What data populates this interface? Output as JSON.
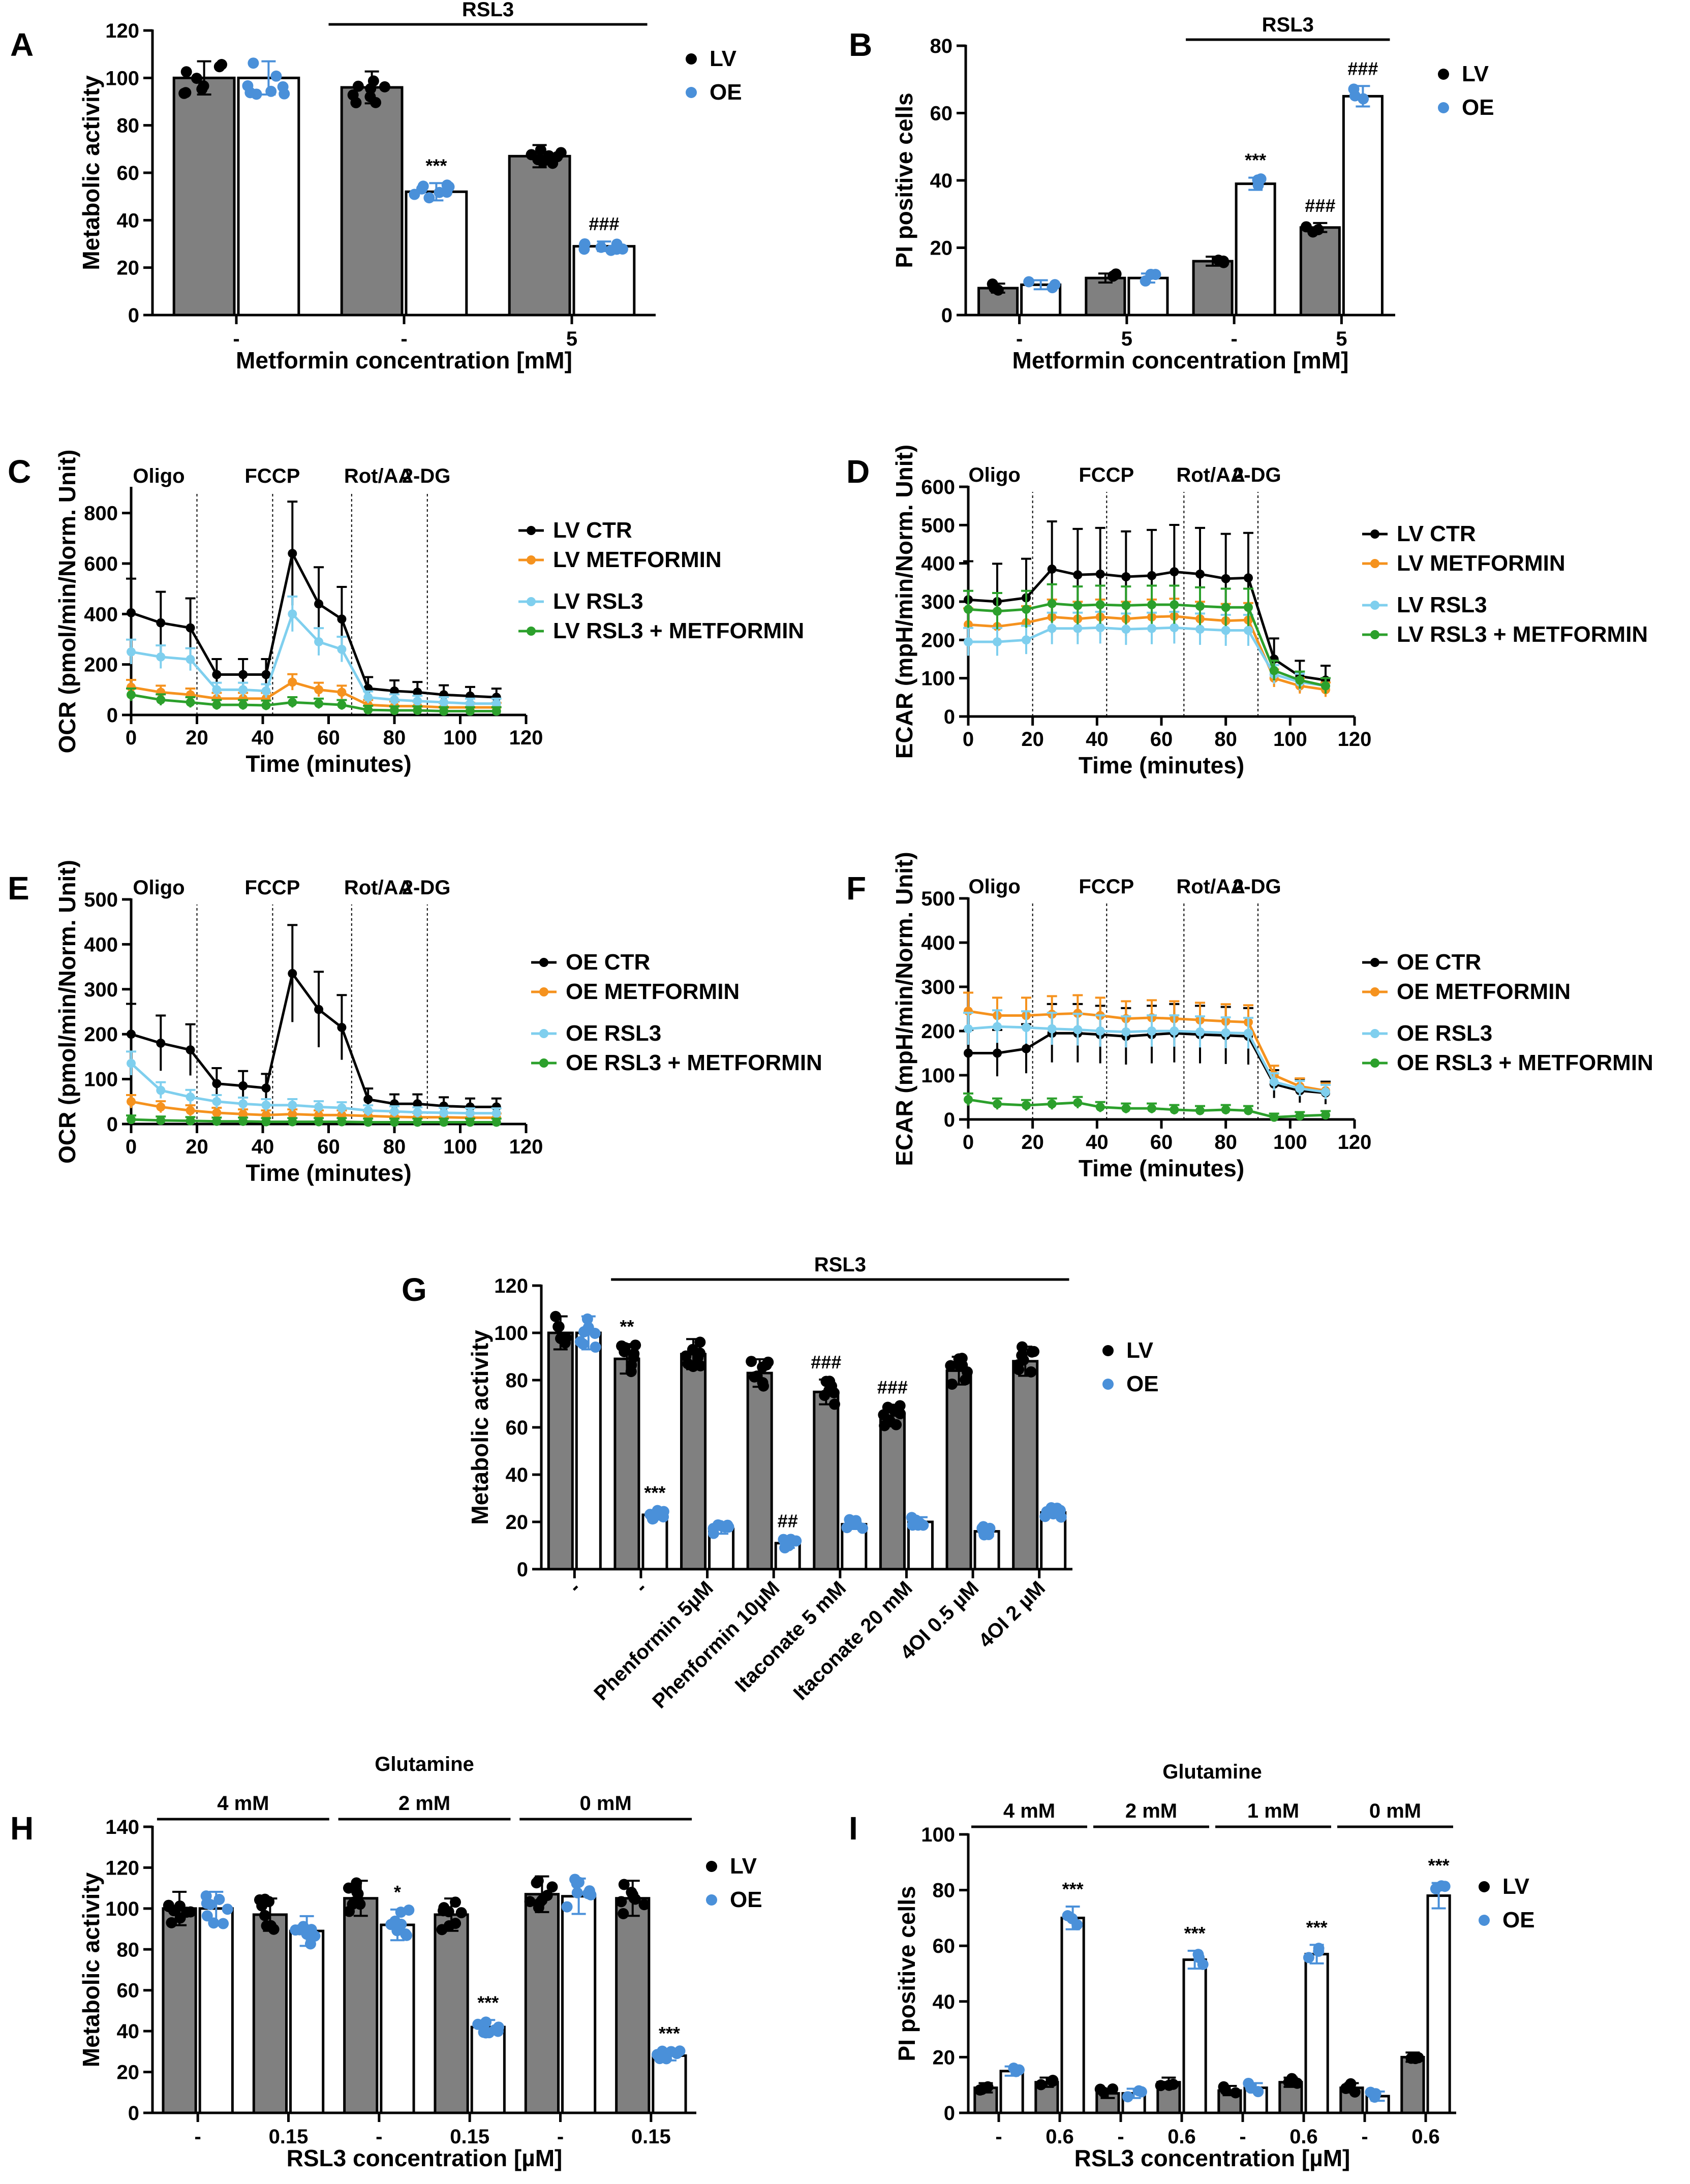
{
  "colors": {
    "lv": "#000000",
    "oe": "#4a90d9",
    "bar_lv": "#808080",
    "bar_oe": "#ffffff",
    "ctr": "#000000",
    "metformin": "#f5921e",
    "rsl3": "#7fcfee",
    "rsl3_metformin": "#2ca02c"
  },
  "chart_data": [
    {
      "id": "A",
      "type": "bar",
      "panel_label": "A",
      "ylabel": "Metabolic activity",
      "xlabel": "Metformin concentration [mM]",
      "ylim": [
        0,
        120
      ],
      "yticks": [
        0,
        20,
        40,
        60,
        80,
        100,
        120
      ],
      "groups": [
        "-",
        "-",
        "5"
      ],
      "series": [
        {
          "name": "LV",
          "values": [
            100,
            96,
            67
          ]
        },
        {
          "name": "OE",
          "values": [
            100,
            52,
            29
          ]
        }
      ],
      "bracket": {
        "label": "RSL3",
        "from_group": 1,
        "to_group": 2
      },
      "annotations": [
        {
          "group": 1,
          "series": 1,
          "text": "***"
        },
        {
          "group": 2,
          "series": 1,
          "text": "###"
        }
      ],
      "legend": [
        "LV",
        "OE"
      ]
    },
    {
      "id": "B",
      "type": "bar",
      "panel_label": "B",
      "ylabel": "PI positive cells",
      "xlabel": "Metformin concentration [mM]",
      "ylim": [
        0,
        80
      ],
      "yticks": [
        0,
        20,
        40,
        60,
        80
      ],
      "groups": [
        "-",
        "5",
        "-",
        "5"
      ],
      "series": [
        {
          "name": "LV",
          "values": [
            8,
            11,
            16,
            26
          ]
        },
        {
          "name": "OE",
          "values": [
            9,
            11,
            39,
            65
          ]
        }
      ],
      "bracket": {
        "label": "RSL3",
        "from_group": 2,
        "to_group": 3
      },
      "annotations": [
        {
          "group": 2,
          "series": 1,
          "text": "***"
        },
        {
          "group": 3,
          "series": 0,
          "text": "###"
        },
        {
          "group": 3,
          "series": 1,
          "text": "###"
        }
      ],
      "legend": [
        "LV",
        "OE"
      ]
    },
    {
      "id": "C",
      "type": "line",
      "panel_label": "C",
      "ylabel": "OCR (pmol/min/Norm. Unit)",
      "xlabel": "Time (minutes)",
      "xlim": [
        0,
        120
      ],
      "xticks": [
        0,
        20,
        40,
        60,
        80,
        100,
        120
      ],
      "ylim": [
        0,
        900
      ],
      "yticks": [
        0,
        200,
        400,
        600,
        800
      ],
      "injections": [
        {
          "label": "Oligo",
          "x": 20
        },
        {
          "label": "FCCP",
          "x": 43
        },
        {
          "label": "Rot/AA",
          "x": 67
        },
        {
          "label": "2-DG",
          "x": 90
        }
      ],
      "x": [
        0,
        9,
        18,
        26,
        34,
        41,
        49,
        57,
        64,
        72,
        80,
        87,
        95,
        103,
        111
      ],
      "series": [
        {
          "name": "LV CTR",
          "values": [
            405,
            365,
            345,
            160,
            160,
            160,
            640,
            440,
            380,
            105,
            95,
            90,
            80,
            75,
            70
          ]
        },
        {
          "name": "LV METFORMIN",
          "values": [
            110,
            90,
            80,
            65,
            65,
            65,
            130,
            100,
            90,
            40,
            35,
            35,
            30,
            30,
            30
          ]
        },
        {
          "name": "LV RSL3",
          "values": [
            250,
            230,
            220,
            100,
            100,
            95,
            400,
            290,
            260,
            70,
            60,
            55,
            50,
            45,
            45
          ]
        },
        {
          "name": "LV RSL3 + METFORMIN",
          "values": [
            80,
            60,
            50,
            40,
            40,
            38,
            50,
            45,
            40,
            20,
            18,
            18,
            15,
            15,
            15
          ]
        }
      ],
      "legend": [
        "LV CTR",
        "LV METFORMIN",
        "LV RSL3",
        "LV RSL3 + METFORMIN"
      ]
    },
    {
      "id": "D",
      "type": "line",
      "panel_label": "D",
      "ylabel": "ECAR (mpH/min/Norm. Unit)",
      "xlabel": "Time (minutes)",
      "xlim": [
        0,
        120
      ],
      "xticks": [
        0,
        20,
        40,
        60,
        80,
        100,
        120
      ],
      "ylim": [
        0,
        600
      ],
      "yticks": [
        0,
        100,
        200,
        300,
        400,
        500,
        600
      ],
      "injections": [
        {
          "label": "Oligo",
          "x": 20
        },
        {
          "label": "FCCP",
          "x": 43
        },
        {
          "label": "Rot/AA",
          "x": 67
        },
        {
          "label": "2-DG",
          "x": 90
        }
      ],
      "x": [
        0,
        9,
        18,
        26,
        34,
        41,
        49,
        57,
        64,
        72,
        80,
        87,
        95,
        103,
        111
      ],
      "series": [
        {
          "name": "LV CTR",
          "values": [
            305,
            300,
            310,
            385,
            370,
            372,
            365,
            368,
            378,
            372,
            360,
            362,
            150,
            105,
            95
          ]
        },
        {
          "name": "LV METFORMIN",
          "values": [
            240,
            235,
            245,
            260,
            255,
            260,
            255,
            260,
            262,
            255,
            250,
            252,
            100,
            80,
            70
          ]
        },
        {
          "name": "LV RSL3",
          "values": [
            195,
            195,
            200,
            230,
            230,
            232,
            228,
            230,
            232,
            228,
            225,
            225,
            110,
            90,
            80
          ]
        },
        {
          "name": "LV RSL3 + METFORMIN",
          "values": [
            280,
            275,
            280,
            295,
            290,
            292,
            290,
            292,
            292,
            288,
            285,
            285,
            120,
            95,
            80
          ]
        }
      ],
      "legend": [
        "LV CTR",
        "LV METFORMIN",
        "LV RSL3",
        "LV RSL3 + METFORMIN"
      ]
    },
    {
      "id": "E",
      "type": "line",
      "panel_label": "E",
      "ylabel": "OCR (pmol/min/Norm. Unit)",
      "xlabel": "Time (minutes)",
      "xlim": [
        0,
        120
      ],
      "xticks": [
        0,
        20,
        40,
        60,
        80,
        100,
        120
      ],
      "ylim": [
        0,
        500
      ],
      "yticks": [
        0,
        100,
        200,
        300,
        400,
        500
      ],
      "injections": [
        {
          "label": "Oligo",
          "x": 20
        },
        {
          "label": "FCCP",
          "x": 43
        },
        {
          "label": "Rot/AA",
          "x": 67
        },
        {
          "label": "2-DG",
          "x": 90
        }
      ],
      "x": [
        0,
        9,
        18,
        26,
        34,
        41,
        49,
        57,
        64,
        72,
        80,
        87,
        95,
        103,
        111
      ],
      "series": [
        {
          "name": "OE CTR",
          "values": [
            200,
            180,
            165,
            90,
            85,
            80,
            335,
            255,
            215,
            55,
            45,
            45,
            40,
            38,
            38
          ]
        },
        {
          "name": "OE METFORMIN",
          "values": [
            50,
            38,
            30,
            25,
            22,
            20,
            22,
            20,
            20,
            18,
            16,
            15,
            15,
            14,
            14
          ]
        },
        {
          "name": "OE RSL3",
          "values": [
            135,
            75,
            60,
            50,
            45,
            42,
            42,
            38,
            36,
            30,
            28,
            26,
            25,
            24,
            24
          ]
        },
        {
          "name": "OE RSL3 + METFORMIN",
          "values": [
            10,
            8,
            7,
            6,
            6,
            5,
            5,
            5,
            5,
            4,
            4,
            4,
            4,
            4,
            4
          ]
        }
      ],
      "legend": [
        "OE CTR",
        "OE METFORMIN",
        "OE RSL3",
        "OE RSL3 + METFORMIN"
      ]
    },
    {
      "id": "F",
      "type": "line",
      "panel_label": "F",
      "ylabel": "ECAR (mpH/min/Norm. Unit)",
      "xlabel": "Time (minutes)",
      "xlim": [
        0,
        120
      ],
      "xticks": [
        0,
        20,
        40,
        60,
        80,
        100,
        120
      ],
      "ylim": [
        0,
        500
      ],
      "yticks": [
        0,
        100,
        200,
        300,
        400,
        500
      ],
      "injections": [
        {
          "label": "Oligo",
          "x": 20
        },
        {
          "label": "FCCP",
          "x": 43
        },
        {
          "label": "Rot/AA",
          "x": 67
        },
        {
          "label": "2-DG",
          "x": 90
        }
      ],
      "x": [
        0,
        9,
        18,
        26,
        34,
        41,
        49,
        57,
        64,
        72,
        80,
        87,
        95,
        103,
        111
      ],
      "series": [
        {
          "name": "OE CTR",
          "values": [
            150,
            150,
            160,
            195,
            195,
            192,
            188,
            192,
            195,
            192,
            190,
            188,
            80,
            65,
            60
          ]
        },
        {
          "name": "OE METFORMIN",
          "values": [
            245,
            235,
            235,
            238,
            240,
            235,
            228,
            230,
            228,
            225,
            222,
            220,
            100,
            75,
            65
          ]
        },
        {
          "name": "OE RSL3",
          "values": [
            205,
            210,
            208,
            205,
            203,
            200,
            198,
            200,
            200,
            198,
            196,
            195,
            85,
            70,
            62
          ]
        },
        {
          "name": "OE RSL3 + METFORMIN",
          "values": [
            45,
            35,
            32,
            35,
            38,
            28,
            25,
            25,
            22,
            20,
            22,
            20,
            5,
            8,
            10
          ]
        }
      ],
      "legend": [
        "OE CTR",
        "OE METFORMIN",
        "OE RSL3",
        "OE RSL3 + METFORMIN"
      ]
    },
    {
      "id": "G",
      "type": "bar",
      "panel_label": "G",
      "ylabel": "Metabolic activity",
      "xlabel": "",
      "ylim": [
        0,
        120
      ],
      "yticks": [
        0,
        20,
        40,
        60,
        80,
        100,
        120
      ],
      "groups": [
        "-",
        "-",
        "Phenformin 5µM",
        "Phenformin 10µM",
        "Itaconate 5 mM",
        "Itaconate 20 mM",
        "4OI 0.5 µM",
        "4OI 2 µM"
      ],
      "rotated_ticks": true,
      "series": [
        {
          "name": "LV",
          "values": [
            100,
            89,
            91,
            83,
            75,
            65,
            84,
            88
          ]
        },
        {
          "name": "OE",
          "values": [
            100,
            23,
            17,
            11,
            19,
            20,
            16,
            24
          ]
        }
      ],
      "bracket": {
        "label": "RSL3",
        "from_group": 1,
        "to_group": 7
      },
      "annotations": [
        {
          "group": 1,
          "series": 0,
          "text": "**"
        },
        {
          "group": 1,
          "series": 1,
          "text": "***"
        },
        {
          "group": 3,
          "series": 1,
          "text": "##"
        },
        {
          "group": 4,
          "series": 0,
          "text": "###"
        },
        {
          "group": 5,
          "series": 0,
          "text": "###"
        }
      ],
      "legend": [
        "LV",
        "OE"
      ]
    },
    {
      "id": "H",
      "type": "bar",
      "panel_label": "H",
      "title": "Glutamine",
      "ylabel": "Metabolic activity",
      "xlabel": "RSL3 concentration [µM]",
      "ylim": [
        0,
        140
      ],
      "yticks": [
        0,
        20,
        40,
        60,
        80,
        100,
        120,
        140
      ],
      "groups": [
        "-",
        "0.15",
        "-",
        "0.15",
        "-",
        "0.15"
      ],
      "series": [
        {
          "name": "LV",
          "values": [
            100,
            97,
            105,
            97,
            107,
            105
          ]
        },
        {
          "name": "OE",
          "values": [
            100,
            89,
            92,
            42,
            106,
            28
          ]
        }
      ],
      "conc_brackets": [
        {
          "label": "4 mM",
          "from_group": 0,
          "to_group": 1
        },
        {
          "label": "2 mM",
          "from_group": 2,
          "to_group": 3
        },
        {
          "label": "0 mM",
          "from_group": 4,
          "to_group": 5
        }
      ],
      "annotations": [
        {
          "group": 2,
          "series": 1,
          "text": "*"
        },
        {
          "group": 3,
          "series": 1,
          "text": "***"
        },
        {
          "group": 5,
          "series": 1,
          "text": "***"
        }
      ],
      "legend": [
        "LV",
        "OE"
      ]
    },
    {
      "id": "I",
      "type": "bar",
      "panel_label": "I",
      "title": "Glutamine",
      "ylabel": "PI positive cells",
      "xlabel": "RSL3 concentration [µM]",
      "ylim": [
        0,
        100
      ],
      "yticks": [
        0,
        20,
        40,
        60,
        80,
        100
      ],
      "groups": [
        "-",
        "0.6",
        "-",
        "0.6",
        "-",
        "0.6",
        "-",
        "0.6"
      ],
      "series": [
        {
          "name": "LV",
          "values": [
            9,
            11,
            7,
            11,
            8,
            11,
            9,
            20
          ]
        },
        {
          "name": "OE",
          "values": [
            15,
            70,
            7,
            55,
            9,
            57,
            6,
            78
          ]
        }
      ],
      "conc_brackets": [
        {
          "label": "4 mM",
          "from_group": 0,
          "to_group": 1
        },
        {
          "label": "2 mM",
          "from_group": 2,
          "to_group": 3
        },
        {
          "label": "1 mM",
          "from_group": 4,
          "to_group": 5
        },
        {
          "label": "0 mM",
          "from_group": 6,
          "to_group": 7
        }
      ],
      "annotations": [
        {
          "group": 1,
          "series": 1,
          "text": "***"
        },
        {
          "group": 3,
          "series": 1,
          "text": "***"
        },
        {
          "group": 5,
          "series": 1,
          "text": "***"
        },
        {
          "group": 7,
          "series": 1,
          "text": "***"
        }
      ],
      "legend": [
        "LV",
        "OE"
      ]
    }
  ]
}
